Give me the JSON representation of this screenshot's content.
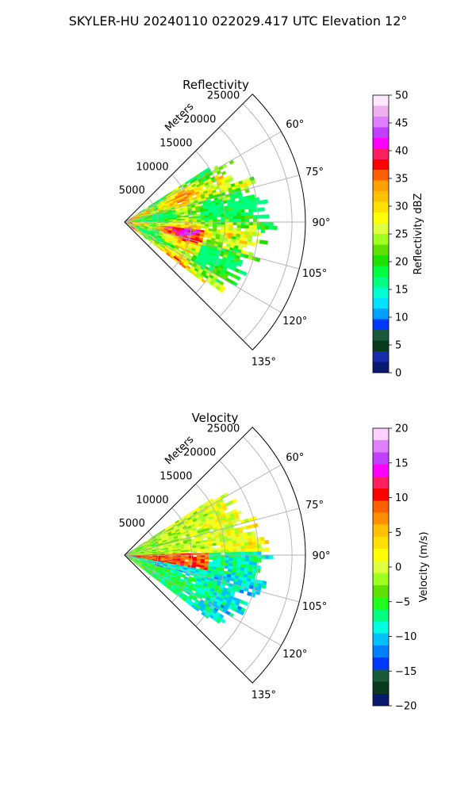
{
  "figure": {
    "title": "SKYLER-HU  20240110  022029.417 UTC Elevation 12°"
  },
  "chart_data": [
    {
      "type": "heatmap",
      "subtype": "polar-sector",
      "title": "Reflectivity",
      "range_axis_label": "Meters",
      "range_ticks": [
        "5000",
        "10000",
        "15000",
        "20000",
        "25000"
      ],
      "range_tick_values": [
        5000,
        10000,
        15000,
        20000,
        25000
      ],
      "range_max": 27000,
      "azimuth_ticks": [
        "60°",
        "75°",
        "90°",
        "105°",
        "120°",
        "135°"
      ],
      "azimuth_tick_values": [
        60,
        75,
        90,
        105,
        120,
        135
      ],
      "azimuth_range": [
        45,
        135
      ],
      "grid": true,
      "colorbar": {
        "label": "Reflectivity dBZ",
        "min": 0,
        "max": 50,
        "ticks": [
          "0",
          "5",
          "10",
          "15",
          "20",
          "25",
          "30",
          "35",
          "40",
          "45",
          "50"
        ]
      },
      "echo_coverage": {
        "azimuth_range": [
          57,
          127
        ],
        "max_range_m": 21000,
        "note_value_range_dbz": [
          18,
          42
        ]
      }
    },
    {
      "type": "heatmap",
      "subtype": "polar-sector",
      "title": "Velocity",
      "range_axis_label": "Meters",
      "range_ticks": [
        "5000",
        "10000",
        "15000",
        "20000",
        "25000"
      ],
      "range_tick_values": [
        5000,
        10000,
        15000,
        20000,
        25000
      ],
      "range_max": 27000,
      "azimuth_ticks": [
        "60°",
        "75°",
        "90°",
        "105°",
        "120°",
        "135°"
      ],
      "azimuth_tick_values": [
        60,
        75,
        90,
        105,
        120,
        135
      ],
      "azimuth_range": [
        45,
        135
      ],
      "grid": true,
      "colorbar": {
        "label": "Velocity (m/s)",
        "min": -20,
        "max": 20,
        "ticks": [
          "−20",
          "−15",
          "−10",
          "−5",
          "0",
          "5",
          "10",
          "15",
          "20"
        ]
      },
      "echo_coverage": {
        "azimuth_range": [
          57,
          127
        ],
        "max_range_m": 21000,
        "note_value_range_ms": [
          -14,
          14
        ]
      }
    }
  ],
  "colors": {
    "reflectivity_scale": [
      "#0a1a6e",
      "#1a2da8",
      "#0a3a1e",
      "#1a5a3a",
      "#0038ff",
      "#00a0ff",
      "#00e0ff",
      "#00ffd0",
      "#00ff80",
      "#00ff40",
      "#20e000",
      "#60e000",
      "#a0ff20",
      "#e0ff40",
      "#ffff00",
      "#ffe000",
      "#ffc000",
      "#ffa000",
      "#ff6000",
      "#ff0000",
      "#ff2060",
      "#ff00ff",
      "#c040ff",
      "#e080ff",
      "#f0b0f0",
      "#ffe8ff"
    ],
    "velocity_scale": [
      "#0a1a6e",
      "#0a3a1e",
      "#1a5a3a",
      "#0038ff",
      "#0080ff",
      "#00c0ff",
      "#00ffe0",
      "#00ff80",
      "#20ff20",
      "#60e000",
      "#a0ff20",
      "#e0ff40",
      "#ffff00",
      "#ffe000",
      "#ffc000",
      "#ff9000",
      "#ff6000",
      "#ff0000",
      "#ff2060",
      "#ff00ff",
      "#c040ff",
      "#e080ff",
      "#ffd0ff"
    ]
  }
}
